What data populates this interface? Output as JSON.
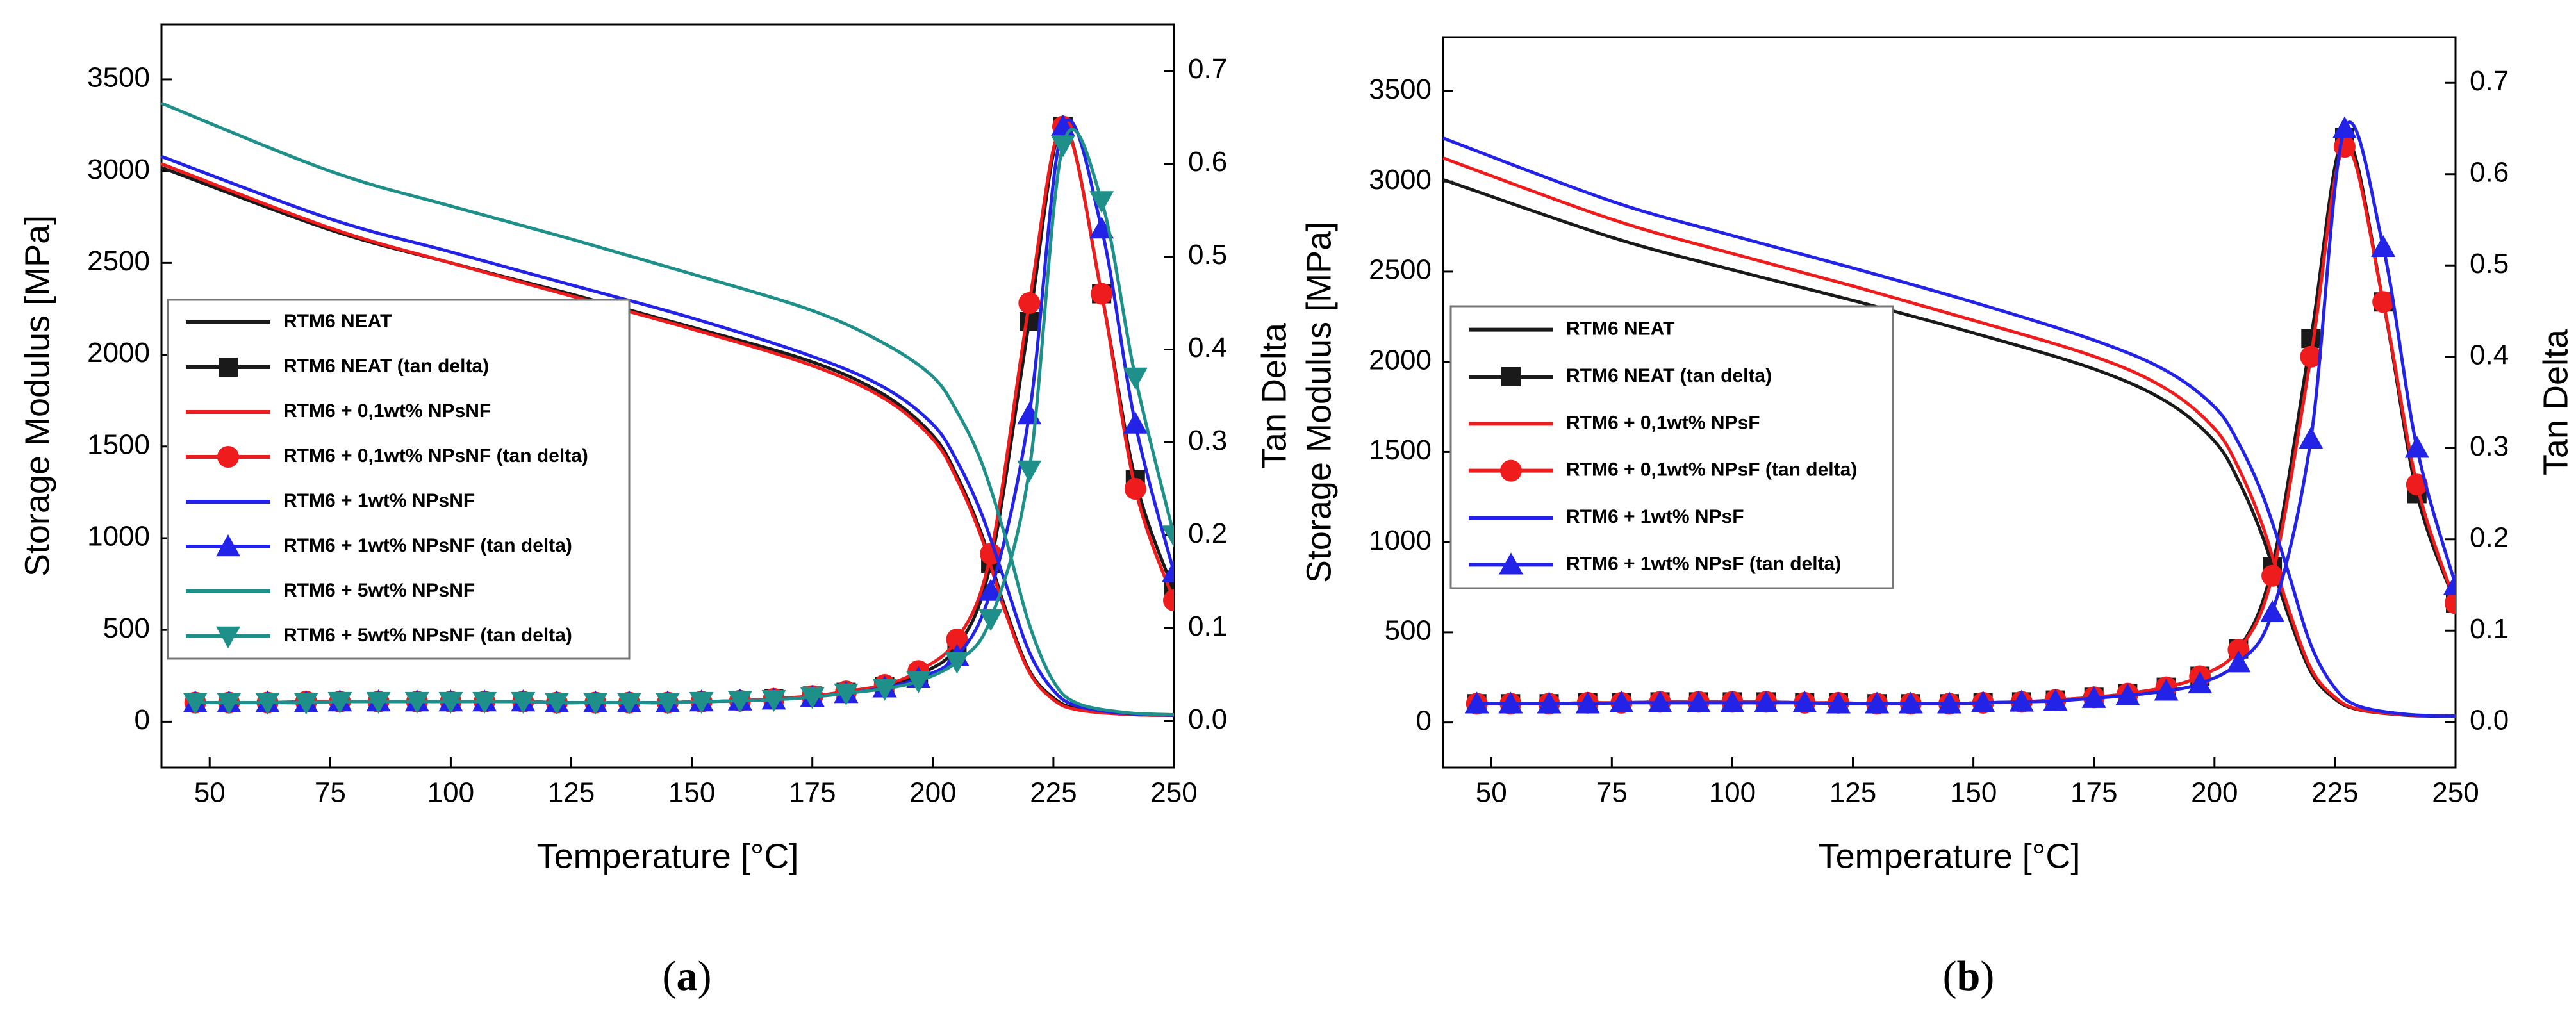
{
  "chart_data": [
    {
      "type": "line",
      "panel_label": "(a)",
      "panel_letter": "a",
      "xlabel": "Temperature [°C]",
      "ylabel": "Storage Modulus [MPa]",
      "y2label": "Tan Delta",
      "xlim": [
        40,
        250
      ],
      "ylim": [
        -250,
        3800
      ],
      "y2lim": [
        -0.05,
        0.75
      ],
      "x_ticks": [
        50,
        75,
        100,
        125,
        150,
        175,
        200,
        225,
        250
      ],
      "y_ticks": [
        0,
        500,
        1000,
        1500,
        2000,
        2500,
        3000,
        3500
      ],
      "y2_ticks": [
        0.0,
        0.1,
        0.2,
        0.3,
        0.4,
        0.5,
        0.6,
        0.7
      ],
      "legend_position": "center-left",
      "series": [
        {
          "name": "RTM6 NEAT",
          "axis": "left",
          "color": "#1a1a1a",
          "marker": "none",
          "x": [
            40,
            75,
            100,
            125,
            150,
            175,
            190,
            200,
            205,
            210,
            215,
            220,
            225,
            230,
            240,
            250
          ],
          "values": [
            3020,
            2680,
            2500,
            2330,
            2150,
            1960,
            1780,
            1560,
            1340,
            1030,
            620,
            280,
            130,
            70,
            40,
            35
          ]
        },
        {
          "name": "RTM6 NEAT (tan delta)",
          "axis": "right",
          "color": "#1a1a1a",
          "marker": "square",
          "x": [
            47,
            54,
            62,
            70,
            77,
            85,
            93,
            100,
            107,
            115,
            122,
            130,
            137,
            145,
            152,
            160,
            167,
            175,
            182,
            190,
            197,
            205,
            212,
            220,
            227,
            235,
            242,
            250
          ],
          "values": [
            0.02,
            0.02,
            0.02,
            0.02,
            0.021,
            0.021,
            0.021,
            0.021,
            0.021,
            0.021,
            0.02,
            0.02,
            0.02,
            0.02,
            0.021,
            0.022,
            0.024,
            0.027,
            0.031,
            0.037,
            0.05,
            0.08,
            0.17,
            0.43,
            0.64,
            0.46,
            0.26,
            0.14
          ]
        },
        {
          "name": "RTM6 + 0,1wt% NPsNF",
          "axis": "left",
          "color": "#ee1c1c",
          "marker": "none",
          "x": [
            40,
            75,
            100,
            125,
            150,
            175,
            190,
            200,
            205,
            210,
            215,
            220,
            225,
            230,
            240,
            250
          ],
          "values": [
            3040,
            2690,
            2500,
            2320,
            2140,
            1940,
            1760,
            1540,
            1320,
            1010,
            600,
            270,
            120,
            65,
            40,
            35
          ]
        },
        {
          "name": "RTM6 + 0,1wt% NPsNF (tan delta)",
          "axis": "right",
          "color": "#ee1c1c",
          "marker": "circle",
          "x": [
            47,
            54,
            62,
            70,
            77,
            85,
            93,
            100,
            107,
            115,
            122,
            130,
            137,
            145,
            152,
            160,
            167,
            175,
            182,
            190,
            197,
            205,
            212,
            220,
            227,
            235,
            242,
            250
          ],
          "values": [
            0.02,
            0.02,
            0.02,
            0.021,
            0.021,
            0.021,
            0.021,
            0.021,
            0.021,
            0.021,
            0.02,
            0.02,
            0.02,
            0.02,
            0.021,
            0.022,
            0.024,
            0.027,
            0.032,
            0.039,
            0.054,
            0.088,
            0.18,
            0.45,
            0.64,
            0.46,
            0.25,
            0.13
          ]
        },
        {
          "name": "RTM6 + 1wt% NPsNF",
          "axis": "left",
          "color": "#2323e8",
          "marker": "none",
          "x": [
            40,
            75,
            100,
            125,
            150,
            175,
            190,
            200,
            205,
            210,
            215,
            220,
            225,
            230,
            240,
            250
          ],
          "values": [
            3080,
            2740,
            2560,
            2380,
            2200,
            1990,
            1820,
            1620,
            1420,
            1140,
            760,
            380,
            170,
            85,
            45,
            35
          ]
        },
        {
          "name": "RTM6 + 1wt% NPsNF (tan delta)",
          "axis": "right",
          "color": "#2323e8",
          "marker": "triangle-up",
          "x": [
            47,
            54,
            62,
            70,
            77,
            85,
            93,
            100,
            107,
            115,
            122,
            130,
            137,
            145,
            152,
            160,
            167,
            175,
            182,
            190,
            197,
            205,
            212,
            220,
            227,
            235,
            242,
            250
          ],
          "values": [
            0.02,
            0.02,
            0.02,
            0.02,
            0.021,
            0.021,
            0.021,
            0.021,
            0.021,
            0.021,
            0.02,
            0.02,
            0.02,
            0.02,
            0.021,
            0.022,
            0.023,
            0.026,
            0.03,
            0.036,
            0.046,
            0.07,
            0.14,
            0.33,
            0.64,
            0.53,
            0.32,
            0.16
          ]
        },
        {
          "name": "RTM6 + 5wt% NPsNF",
          "axis": "left",
          "color": "#1f8f8a",
          "marker": "none",
          "x": [
            40,
            75,
            100,
            125,
            150,
            175,
            190,
            200,
            205,
            210,
            215,
            220,
            225,
            230,
            240,
            250
          ],
          "values": [
            3370,
            3000,
            2810,
            2630,
            2440,
            2240,
            2060,
            1880,
            1690,
            1420,
            1010,
            530,
            220,
            100,
            50,
            38
          ]
        },
        {
          "name": "RTM6 + 5wt% NPsNF (tan delta)",
          "axis": "right",
          "color": "#1f8f8a",
          "marker": "triangle-down",
          "x": [
            47,
            54,
            62,
            70,
            77,
            85,
            93,
            100,
            107,
            115,
            122,
            130,
            137,
            145,
            152,
            160,
            167,
            175,
            182,
            190,
            197,
            205,
            212,
            220,
            227,
            235,
            242,
            250
          ],
          "values": [
            0.02,
            0.02,
            0.02,
            0.02,
            0.021,
            0.021,
            0.021,
            0.021,
            0.021,
            0.021,
            0.02,
            0.02,
            0.02,
            0.02,
            0.021,
            0.022,
            0.023,
            0.026,
            0.03,
            0.035,
            0.043,
            0.064,
            0.11,
            0.27,
            0.62,
            0.56,
            0.37,
            0.2
          ]
        }
      ]
    },
    {
      "type": "line",
      "panel_label": "(b)",
      "panel_letter": "b",
      "xlabel": "Temperature [°C]",
      "ylabel": "Storage Modulus [MPa]",
      "y2label": "Tan Delta",
      "xlim": [
        40,
        250
      ],
      "ylim": [
        -250,
        3800
      ],
      "y2lim": [
        -0.05,
        0.75
      ],
      "x_ticks": [
        50,
        75,
        100,
        125,
        150,
        175,
        200,
        225,
        250
      ],
      "y_ticks": [
        0,
        500,
        1000,
        1500,
        2000,
        2500,
        3000,
        3500
      ],
      "y2_ticks": [
        0.0,
        0.1,
        0.2,
        0.3,
        0.4,
        0.5,
        0.6,
        0.7
      ],
      "legend_position": "center-left",
      "series": [
        {
          "name": "RTM6 NEAT",
          "axis": "left",
          "color": "#1a1a1a",
          "marker": "none",
          "x": [
            40,
            75,
            100,
            125,
            150,
            175,
            190,
            200,
            205,
            210,
            215,
            220,
            225,
            230,
            240,
            250
          ],
          "values": [
            3010,
            2690,
            2510,
            2340,
            2160,
            1960,
            1780,
            1560,
            1340,
            1030,
            620,
            280,
            130,
            70,
            40,
            35
          ]
        },
        {
          "name": "RTM6 NEAT (tan delta)",
          "axis": "right",
          "color": "#1a1a1a",
          "marker": "square",
          "x": [
            47,
            54,
            62,
            70,
            77,
            85,
            93,
            100,
            107,
            115,
            122,
            130,
            137,
            145,
            152,
            160,
            167,
            175,
            182,
            190,
            197,
            205,
            212,
            220,
            227,
            235,
            242,
            250
          ],
          "values": [
            0.02,
            0.02,
            0.02,
            0.021,
            0.021,
            0.022,
            0.022,
            0.022,
            0.022,
            0.021,
            0.021,
            0.02,
            0.02,
            0.02,
            0.021,
            0.022,
            0.024,
            0.027,
            0.031,
            0.038,
            0.05,
            0.08,
            0.17,
            0.42,
            0.64,
            0.46,
            0.25,
            0.13
          ]
        },
        {
          "name": "RTM6 + 0,1wt% NPsF",
          "axis": "left",
          "color": "#ee1c1c",
          "marker": "none",
          "x": [
            40,
            75,
            100,
            125,
            150,
            175,
            190,
            200,
            205,
            210,
            215,
            220,
            225,
            230,
            240,
            250
          ],
          "values": [
            3130,
            2790,
            2600,
            2420,
            2230,
            2030,
            1850,
            1630,
            1410,
            1090,
            660,
            300,
            140,
            72,
            42,
            36
          ]
        },
        {
          "name": "RTM6 + 0,1wt% NPsF (tan delta)",
          "axis": "right",
          "color": "#ee1c1c",
          "marker": "circle",
          "x": [
            47,
            54,
            62,
            70,
            77,
            85,
            93,
            100,
            107,
            115,
            122,
            130,
            137,
            145,
            152,
            160,
            167,
            175,
            182,
            190,
            197,
            205,
            212,
            220,
            227,
            235,
            242,
            250
          ],
          "values": [
            0.02,
            0.02,
            0.02,
            0.021,
            0.021,
            0.022,
            0.022,
            0.022,
            0.022,
            0.021,
            0.021,
            0.02,
            0.02,
            0.02,
            0.021,
            0.022,
            0.024,
            0.027,
            0.031,
            0.038,
            0.05,
            0.079,
            0.16,
            0.4,
            0.63,
            0.46,
            0.26,
            0.13
          ]
        },
        {
          "name": "RTM6 + 1wt% NPsF",
          "axis": "left",
          "color": "#2323e8",
          "marker": "none",
          "x": [
            40,
            75,
            100,
            125,
            150,
            175,
            190,
            200,
            205,
            210,
            215,
            220,
            225,
            230,
            240,
            250
          ],
          "values": [
            3240,
            2890,
            2700,
            2520,
            2330,
            2120,
            1950,
            1750,
            1550,
            1260,
            860,
            430,
            190,
            90,
            45,
            36
          ]
        },
        {
          "name": "RTM6 + 1wt% NPsF (tan delta)",
          "axis": "right",
          "color": "#2323e8",
          "marker": "triangle-up",
          "x": [
            47,
            54,
            62,
            70,
            77,
            85,
            93,
            100,
            107,
            115,
            122,
            130,
            137,
            145,
            152,
            160,
            167,
            175,
            182,
            190,
            197,
            205,
            212,
            220,
            227,
            235,
            242,
            250
          ],
          "values": [
            0.02,
            0.02,
            0.02,
            0.02,
            0.021,
            0.021,
            0.021,
            0.021,
            0.021,
            0.021,
            0.02,
            0.02,
            0.02,
            0.02,
            0.021,
            0.022,
            0.023,
            0.026,
            0.029,
            0.034,
            0.042,
            0.065,
            0.12,
            0.31,
            0.65,
            0.52,
            0.3,
            0.15
          ]
        }
      ]
    }
  ]
}
